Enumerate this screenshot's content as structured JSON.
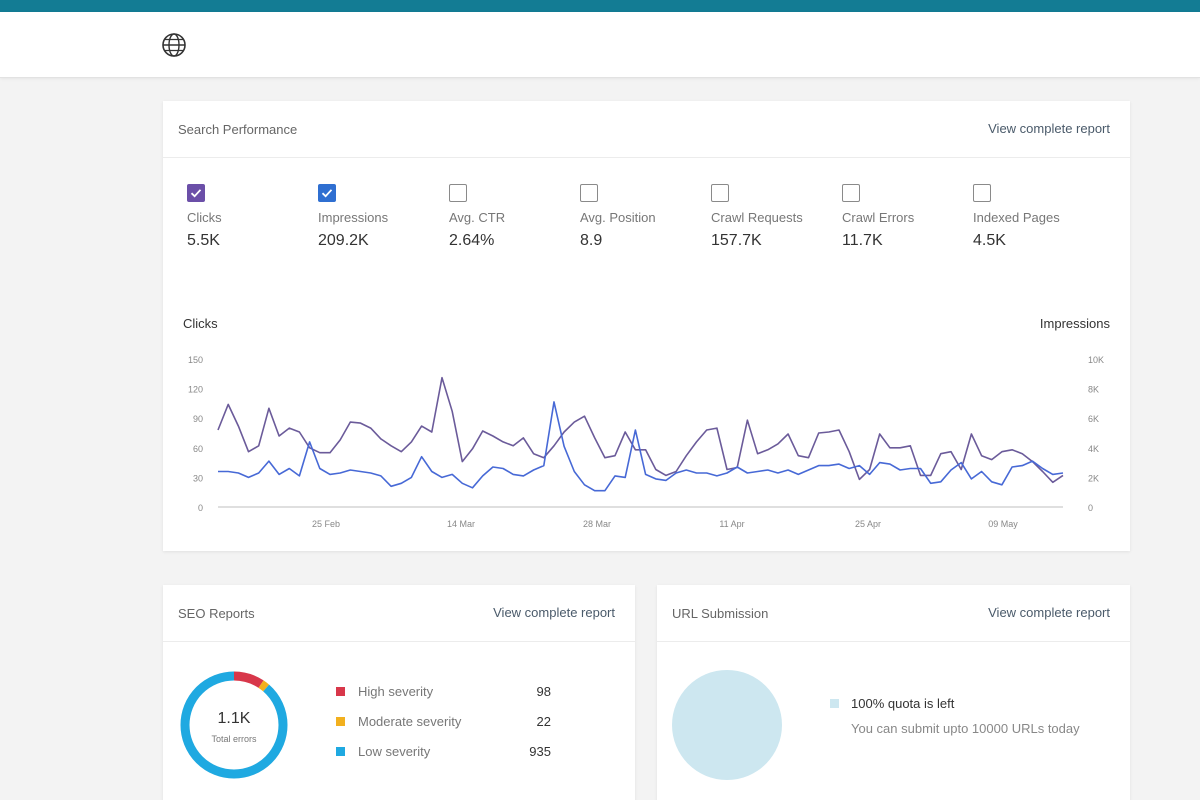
{
  "header": {
    "icon": "globe-icon"
  },
  "performance": {
    "title": "Search Performance",
    "link": "View complete report",
    "metrics": [
      {
        "label": "Clicks",
        "value": "5.5K",
        "checked": true,
        "color": "#6b4fa8"
      },
      {
        "label": "Impressions",
        "value": "209.2K",
        "checked": true,
        "color": "#2f6fd1"
      },
      {
        "label": "Avg. CTR",
        "value": "2.64%",
        "checked": false
      },
      {
        "label": "Avg. Position",
        "value": "8.9",
        "checked": false
      },
      {
        "label": "Crawl Requests",
        "value": "157.7K",
        "checked": false
      },
      {
        "label": "Crawl Errors",
        "value": "11.7K",
        "checked": false
      },
      {
        "label": "Indexed Pages",
        "value": "4.5K",
        "checked": false
      }
    ],
    "left_axis_title": "Clicks",
    "right_axis_title": "Impressions"
  },
  "chart_data": {
    "type": "line",
    "x_ticks": [
      "25 Feb",
      "14 Mar",
      "28 Mar",
      "11 Apr",
      "25 Apr",
      "09 May"
    ],
    "y_left_ticks": [
      "0",
      "30",
      "60",
      "90",
      "120",
      "150"
    ],
    "y_right_ticks": [
      "0",
      "2K",
      "4K",
      "6K",
      "8K",
      "10K"
    ],
    "ylim_left": [
      0,
      150
    ],
    "ylim_right": [
      0,
      10000
    ],
    "grid": false,
    "series": [
      {
        "name": "Clicks",
        "axis": "left",
        "color": "#6b5b9a",
        "values": [
          78,
          104,
          82,
          56,
          62,
          100,
          72,
          80,
          76,
          60,
          55,
          55,
          68,
          86,
          85,
          80,
          69,
          62,
          56,
          66,
          82,
          76,
          131,
          97,
          46,
          59,
          77,
          72,
          66,
          62,
          70,
          54,
          50,
          62,
          76,
          86,
          92,
          70,
          50,
          52,
          76,
          58,
          58,
          38,
          32,
          36,
          52,
          66,
          78,
          80,
          38,
          40,
          88,
          54,
          58,
          64,
          74,
          52,
          50,
          75,
          76,
          78,
          56,
          28,
          38,
          74,
          60,
          60,
          62,
          32,
          32,
          54,
          56,
          38,
          74,
          52,
          48,
          56,
          58,
          54,
          46,
          36,
          25,
          32
        ]
      },
      {
        "name": "Impressions",
        "axis": "right",
        "color": "#4769d6",
        "values": [
          2400,
          2400,
          2300,
          2000,
          2300,
          3100,
          2200,
          2600,
          2100,
          4400,
          2600,
          2200,
          2300,
          2500,
          2400,
          2300,
          2100,
          1400,
          1600,
          2000,
          3400,
          2400,
          2000,
          2200,
          1600,
          1300,
          2100,
          2700,
          2600,
          2200,
          2100,
          2500,
          2800,
          7100,
          4100,
          2400,
          1500,
          1100,
          1100,
          2100,
          2000,
          5200,
          2200,
          1900,
          1800,
          2300,
          2500,
          2300,
          2300,
          2100,
          2300,
          2700,
          2300,
          2400,
          2500,
          2300,
          2500,
          2200,
          2500,
          2800,
          2800,
          2900,
          2600,
          2800,
          2200,
          3000,
          2900,
          2500,
          2600,
          2600,
          1600,
          1700,
          2500,
          3000,
          1900,
          2400,
          1700,
          1500,
          2700,
          2800,
          3100,
          2600,
          2200,
          2300
        ]
      }
    ]
  },
  "seo": {
    "title": "SEO Reports",
    "link": "View complete report",
    "total": "1.1K",
    "total_label": "Total errors",
    "items": [
      {
        "label": "High severity",
        "value": "98",
        "count": 98,
        "color": "#d8374a"
      },
      {
        "label": "Moderate severity",
        "value": "22",
        "count": 22,
        "color": "#f2b01e"
      },
      {
        "label": "Low severity",
        "value": "935",
        "count": 935,
        "color": "#1fa9e1"
      }
    ]
  },
  "url": {
    "title": "URL Submission",
    "link": "View complete report",
    "quota": "100% quota is left",
    "note": "You can submit upto 10000 URLs today",
    "color": "#cde7f0"
  }
}
